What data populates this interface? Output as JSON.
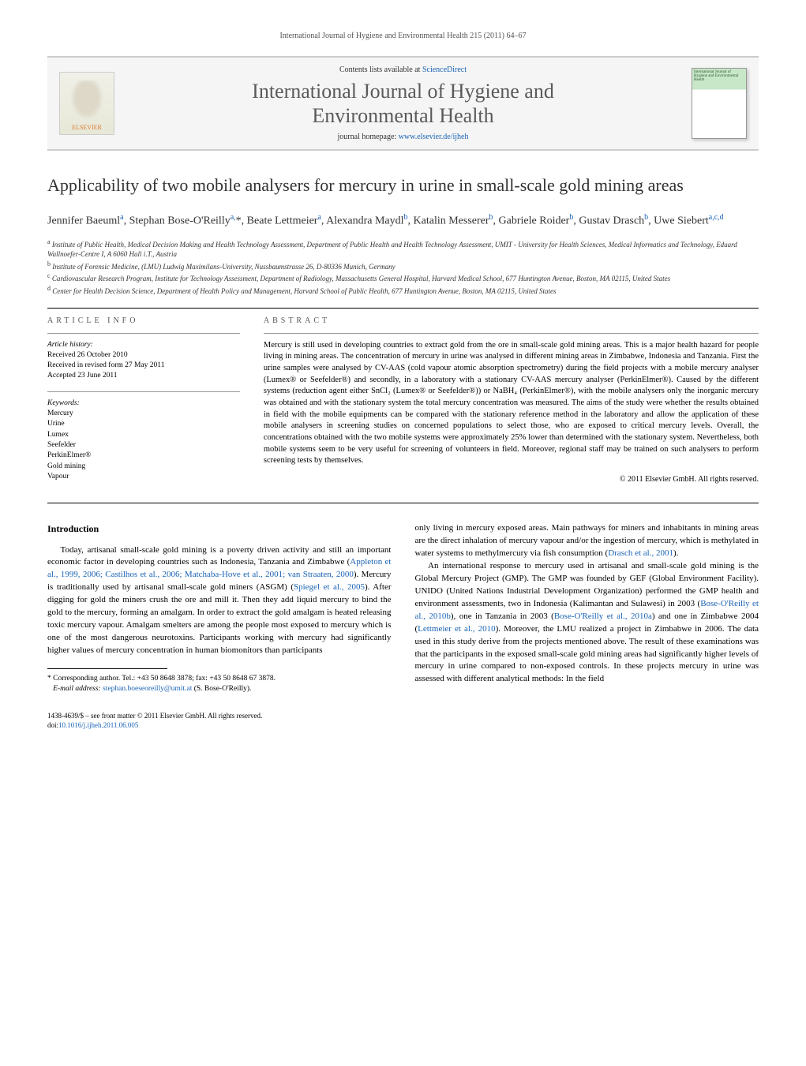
{
  "running_header": "International Journal of Hygiene and Environmental Health 215 (2011) 64–67",
  "masthead": {
    "publisher_name": "ELSEVIER",
    "contents_prefix": "Contents lists available at ",
    "contents_link": "ScienceDirect",
    "journal_name_line1": "International Journal of Hygiene and",
    "journal_name_line2": "Environmental Health",
    "homepage_prefix": "journal homepage: ",
    "homepage_url": "www.elsevier.de/ijheh",
    "cover_text": "International Journal of Hygiene and Environmental Health"
  },
  "article": {
    "title": "Applicability of two mobile analysers for mercury in urine in small-scale gold mining areas",
    "authors_html": "Jennifer Baeuml<sup>a</sup>, Stephan Bose-O'Reilly<sup>a,</sup><span class='star'>*</span>, Beate Lettmeier<sup>a</sup>, Alexandra Maydl<sup>b</sup>, Katalin Messerer<sup>b</sup>, Gabriele Roider<sup>b</sup>, Gustav Drasch<sup>b</sup>, Uwe Siebert<sup>a,c,d</sup>",
    "affiliations": [
      "a|Institute of Public Health, Medical Decision Making and Health Technology Assessment, Department of Public Health and Health Technology Assessment, UMIT - University for Health Sciences, Medical Informatics and Technology, Eduard Wallnoefer-Centre I, A 6060 Hall i.T., Austria",
      "b|Institute of Forensic Medicine, (LMU) Ludwig Maximilans-University, Nussbaumstrasse 26, D-80336 Munich, Germany",
      "c|Cardiovascular Research Program, Institute for Technology Assessment, Department of Radiology, Massachusetts General Hospital, Harvard Medical School, 677 Huntington Avenue, Boston, MA 02115, United States",
      "d|Center for Health Decision Science, Department of Health Policy and Management, Harvard School of Public Health, 677 Huntington Avenue, Boston, MA 02115, United States"
    ]
  },
  "info": {
    "section_label": "article info",
    "history_label": "Article history:",
    "history": [
      "Received 26 October 2010",
      "Received in revised form 27 May 2011",
      "Accepted 23 June 2011"
    ],
    "keywords_label": "Keywords:",
    "keywords": [
      "Mercury",
      "Urine",
      "Lumex",
      "Seefelder",
      "PerkinElmer®",
      "Gold mining",
      "Vapour"
    ]
  },
  "abstract": {
    "section_label": "abstract",
    "text": "Mercury is still used in developing countries to extract gold from the ore in small-scale gold mining areas. This is a major health hazard for people living in mining areas. The concentration of mercury in urine was analysed in different mining areas in Zimbabwe, Indonesia and Tanzania. First the urine samples were analysed by CV-AAS (cold vapour atomic absorption spectrometry) during the field projects with a mobile mercury analyser (Lumex® or Seefelder®) and secondly, in a laboratory with a stationary CV-AAS mercury analyser (PerkinElmer®). Caused by the different systems (reduction agent either SnCl₂ (Lumex® or Seefelder®)) or NaBH₄ (PerkinElmer®), with the mobile analysers only the inorganic mercury was obtained and with the stationary system the total mercury concentration was measured. The aims of the study were whether the results obtained in field with the mobile equipments can be compared with the stationary reference method in the laboratory and allow the application of these mobile analysers in screening studies on concerned populations to select those, who are exposed to critical mercury levels. Overall, the concentrations obtained with the two mobile systems were approximately 25% lower than determined with the stationary system. Nevertheless, both mobile systems seem to be very useful for screening of volunteers in field. Moreover, regional staff may be trained on such analysers to perform screening tests by themselves.",
    "copyright": "© 2011 Elsevier GmbH. All rights reserved."
  },
  "body": {
    "heading": "Introduction",
    "col1_p1_pre": "Today, artisanal small-scale gold mining is a poverty driven activity and still an important economic factor in developing countries such as Indonesia, Tanzania and Zimbabwe (",
    "col1_p1_link1": "Appleton et al., 1999, 2006; Castilhos et al., 2006; Matchaba-Hove et al., 2001; van Straaten, 2000",
    "col1_p1_mid1": "). Mercury is traditionally used by artisanal small-scale gold miners (ASGM) (",
    "col1_p1_link2": "Spiegel et al., 2005",
    "col1_p1_post": "). After digging for gold the miners crush the ore and mill it. Then they add liquid mercury to bind the gold to the mercury, forming an amalgam. In order to extract the gold amalgam is heated releasing toxic mercury vapour. Amalgam smelters are among the people most exposed to mercury which is one of the most dangerous neurotoxins. Participants working with mercury had significantly higher values of mercury concentration in human biomonitors than participants",
    "col2_p1_pre": "only living in mercury exposed areas. Main pathways for miners and inhabitants in mining areas are the direct inhalation of mercury vapour and/or the ingestion of mercury, which is methylated in water systems to methylmercury via fish consumption (",
    "col2_p1_link1": "Drasch et al., 2001",
    "col2_p1_post": ").",
    "col2_p2_pre": "An international response to mercury used in artisanal and small-scale gold mining is the Global Mercury Project (GMP). The GMP was founded by GEF (Global Environment Facility). UNIDO (United Nations Industrial Development Organization) performed the GMP health and environment assessments, two in Indonesia (Kalimantan and Sulawesi) in 2003 (",
    "col2_p2_link1": "Bose-O'Reilly et al., 2010b",
    "col2_p2_mid1": "), one in Tanzania in 2003 (",
    "col2_p2_link2": "Bose-O'Reilly et al., 2010a",
    "col2_p2_mid2": ") and one in Zimbabwe 2004 (",
    "col2_p2_link3": "Lettmeier et al., 2010",
    "col2_p2_post": "). Moreover, the LMU realized a project in Zimbabwe in 2006. The data used in this study derive from the projects mentioned above. The result of these examinations was that the participants in the exposed small-scale gold mining areas had significantly higher levels of mercury in urine compared to non-exposed controls. In these projects mercury in urine was assessed with different analytical methods: In the field"
  },
  "footnote": {
    "marker": "*",
    "text_pre": " Corresponding author. Tel.: +43 50 8648 3878; fax: +43 50 8648 67 3878.",
    "email_label": "E-mail address: ",
    "email": "stephan.boeseoreilly@umit.at",
    "email_person": " (S. Bose-O'Reilly)."
  },
  "footer": {
    "issn_line": "1438-4639/$ – see front matter © 2011 Elsevier GmbH. All rights reserved.",
    "doi_prefix": "doi:",
    "doi": "10.1016/j.ijheh.2011.06.005"
  },
  "colors": {
    "link": "#1a63b5",
    "header_gray": "#5a5a5a",
    "border": "#cccccc",
    "elsevier_orange": "#d97b2e"
  }
}
